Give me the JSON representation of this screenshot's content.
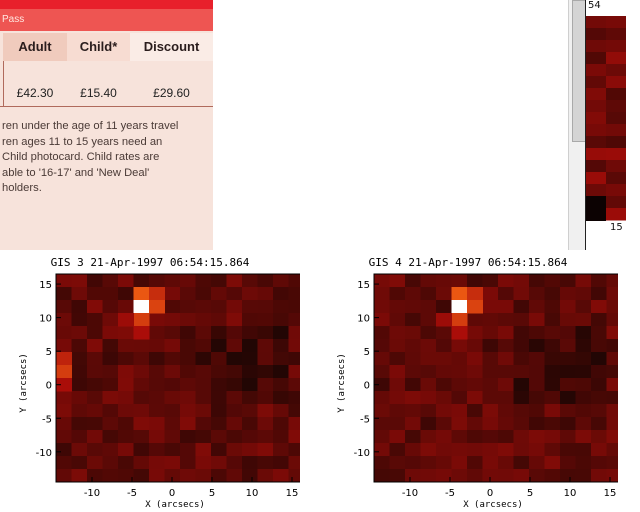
{
  "fares": {
    "pass_label": "Pass",
    "columns": [
      "Adult",
      "Child*",
      "Discount"
    ],
    "prices": [
      "£42.30",
      "£15.40",
      "£29.60"
    ],
    "note_lines": [
      "ren under the age of 11 years travel",
      "ren ages 11 to 15 years need an",
      "Child photocard. Child rates are",
      "able to '16-17' and 'New Deal'",
      " holders."
    ]
  },
  "side_panel": {
    "top_label": "54",
    "tick_label": "15"
  },
  "plots": [
    {
      "title": "GIS 3 21-Apr-1997 06:54:15.864",
      "xlabel": "X (arcsecs)",
      "ylabel": "Y (arcsecs)",
      "xticks": [
        "-10",
        "-5",
        "0",
        "5",
        "10",
        "15"
      ],
      "yticks": [
        "15",
        "10",
        "5",
        "0",
        "-5",
        "-10"
      ]
    },
    {
      "title": "GIS 4 21-Apr-1997 06:54:15.864",
      "xlabel": "X (arcsecs)",
      "ylabel": "Y (arcsecs)",
      "xticks": [
        "-10",
        "-5",
        "0",
        "5",
        "10",
        "15"
      ],
      "yticks": [
        "15",
        "10",
        "5",
        "0",
        "-5",
        "-10"
      ]
    }
  ]
}
